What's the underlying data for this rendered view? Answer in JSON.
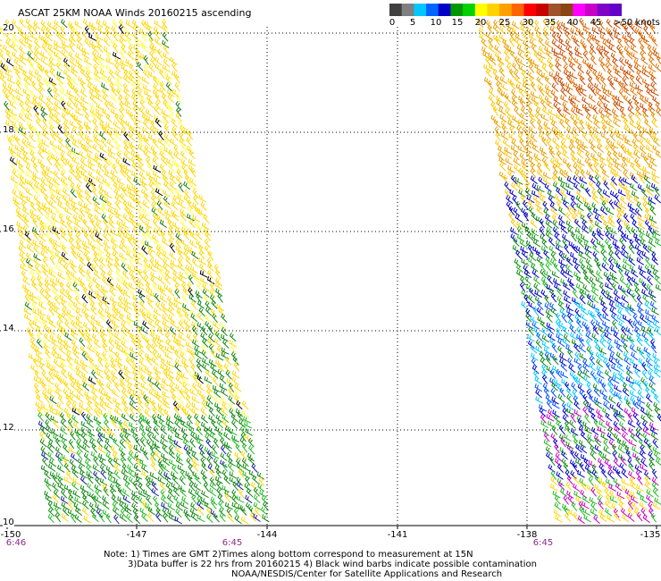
{
  "title": "ASCAT 25KM NOAA Winds 20160215 ascending",
  "legend": {
    "labels": [
      "0",
      "5",
      "10",
      "15",
      "20",
      "25",
      "30",
      "35",
      "40",
      "45",
      ">50 knots"
    ],
    "colors": [
      "#404040",
      "#808080",
      "#00c8ff",
      "#0064ff",
      "#0000c8",
      "#009600",
      "#00d200",
      "#ffff00",
      "#ffd200",
      "#ffa000",
      "#ff6400",
      "#ff0000",
      "#c80000",
      "#a0522d",
      "#8b4513",
      "#ff00ff",
      "#c800c8",
      "#8000c8",
      "#6400c8"
    ]
  },
  "axes": {
    "lat_labels": [
      "20",
      "18",
      "16",
      "14",
      "12",
      "10"
    ],
    "lon_labels": [
      "-150",
      "-147",
      "-144",
      "-141",
      "-138",
      "-135"
    ]
  },
  "pass_times": [
    "6:46",
    "6:45",
    "6:45"
  ],
  "notes": [
    "Note: 1) Times are GMT 2)Times along bottom correspond to measurement at 15N",
    "3)Data buffer is 22 hrs from 20160215 4) Black wind barbs indicate possible contamination",
    "NOAA/NESDIS/Center for Satellite Applications and Research"
  ]
}
